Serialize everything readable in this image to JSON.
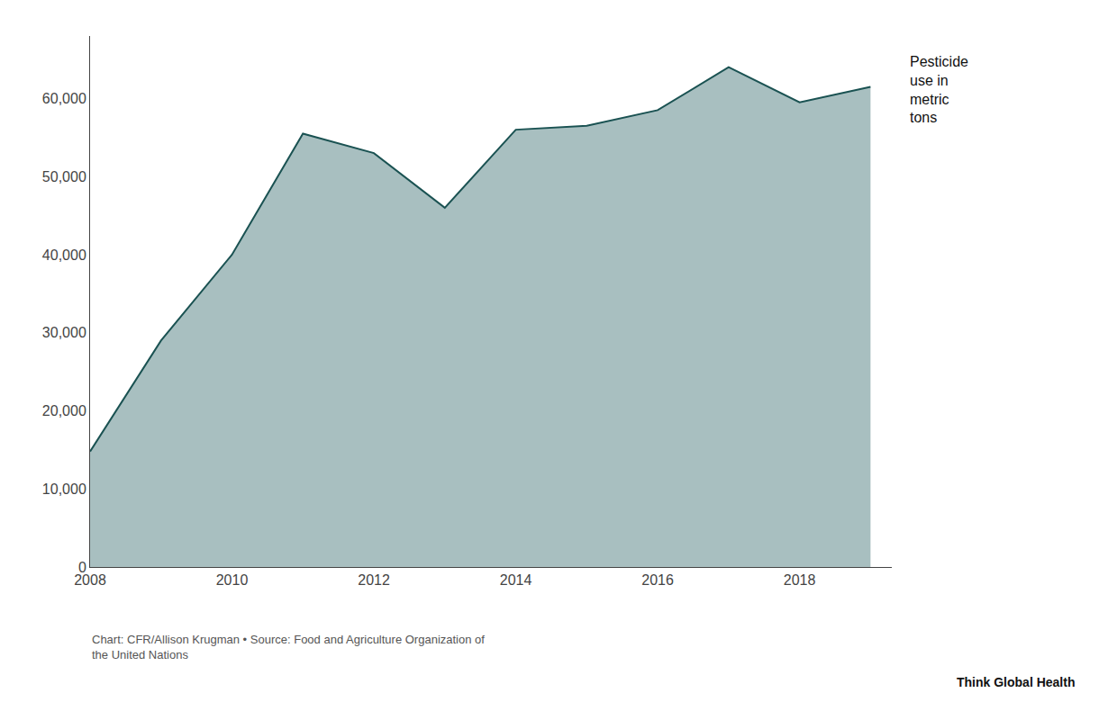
{
  "chart_data": {
    "type": "area",
    "x": [
      2008,
      2009,
      2010,
      2011,
      2012,
      2013,
      2014,
      2015,
      2016,
      2017,
      2018,
      2019
    ],
    "series": [
      {
        "type": "area",
        "color": "#a8bfc0",
        "values": [
          14800,
          29000,
          40000,
          55500,
          53000,
          46000,
          56000,
          56500,
          58500,
          64000,
          59500,
          61500
        ]
      },
      {
        "type": "line",
        "color": "#1a5252",
        "values": [
          14800,
          29000,
          40000,
          55500,
          53000,
          46000,
          56000,
          56500,
          58500,
          64000,
          59500,
          61500
        ]
      }
    ],
    "xlim": [
      2008,
      2019.3
    ],
    "xticks": [
      2008,
      2010,
      2012,
      2014,
      2016,
      2018
    ],
    "ylim": [
      0,
      68000
    ],
    "yticks": [
      0,
      {
        "value": 10000,
        "label": "10,000"
      },
      {
        "value": 20000,
        "label": "20,000"
      },
      {
        "value": 30000,
        "label": "30,000"
      },
      {
        "value": 40000,
        "label": "40,000"
      },
      {
        "value": 50000,
        "label": "50,000"
      },
      {
        "value": 60000,
        "label": "60,000"
      }
    ],
    "grid": false,
    "annotations": [
      "Pesticide\nuse in\nmetric\ntons",
      "Chart: CFR/Allison Krugman • Source: Food and Agriculture Organization of\nthe United Nations",
      "Think Global Health"
    ]
  }
}
